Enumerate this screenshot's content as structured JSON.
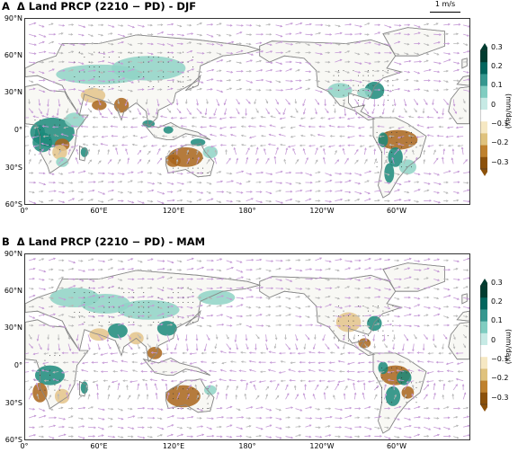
{
  "panels": [
    {
      "letter": "A",
      "title": "Δ Land PRCP (2210 − PD) - DJF",
      "reference_vector": "1 m/s"
    },
    {
      "letter": "B",
      "title": "Δ Land PRCP (2210 − PD) - MAM",
      "reference_vector": ""
    }
  ],
  "lat_labels": [
    "90°N",
    "60°N",
    "30°N",
    "0°",
    "30°S",
    "60°S"
  ],
  "lon_labels": [
    "0°",
    "60°E",
    "120°E",
    "180°",
    "120°W",
    "60°W"
  ],
  "colorbar": {
    "ticks": [
      "0.3",
      "0.2",
      "0.1",
      "0",
      "−0.1",
      "−0.2",
      "−0.3"
    ],
    "unit": "(mm/day)",
    "colors": [
      "#8c510a",
      "#bf812d",
      "#dfc27d",
      "#f6e8c3",
      "#ffffff",
      "#c7eae5",
      "#80cdc1",
      "#35978f",
      "#01665e",
      "#003c30"
    ]
  },
  "colors": {
    "land": "#f8f8f4",
    "coast": "#8a8a8a",
    "wet": "#1b8a7a",
    "wet_light": "#8fd3c6",
    "dry": "#a9651b",
    "dry_light": "#e4c48a",
    "vector": "#c59ad6",
    "vector_grey": "#b7b7b7"
  }
}
